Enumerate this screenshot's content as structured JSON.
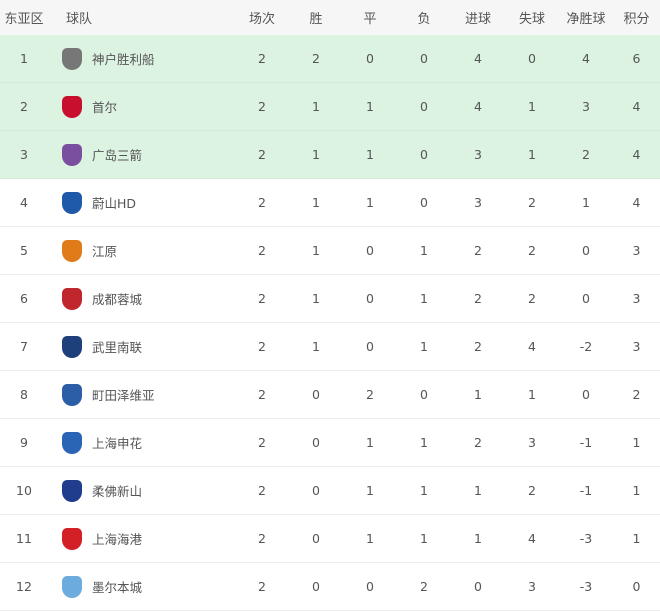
{
  "headers": [
    "东亚区",
    "球队",
    "场次",
    "胜",
    "平",
    "负",
    "进球",
    "失球",
    "净胜球",
    "积分"
  ],
  "qualify_color": "#ddf3e1",
  "rows": [
    {
      "rank": "1",
      "team": "神户胜利船",
      "logo": "vissel-kobe-crest-icon",
      "color": "#777",
      "p": "2",
      "w": "2",
      "d": "0",
      "l": "0",
      "gf": "4",
      "ga": "0",
      "gd": "4",
      "pts": "6",
      "q": true
    },
    {
      "rank": "2",
      "team": "首尔",
      "logo": "fc-seoul-crest-icon",
      "color": "#c8102e",
      "p": "2",
      "w": "1",
      "d": "1",
      "l": "0",
      "gf": "4",
      "ga": "1",
      "gd": "3",
      "pts": "4",
      "q": true
    },
    {
      "rank": "3",
      "team": "广岛三箭",
      "logo": "sanfrecce-hiroshima-crest-icon",
      "color": "#7a4fa0",
      "p": "2",
      "w": "1",
      "d": "1",
      "l": "0",
      "gf": "3",
      "ga": "1",
      "gd": "2",
      "pts": "4",
      "q": true
    },
    {
      "rank": "4",
      "team": "蔚山HD",
      "logo": "ulsan-hd-crest-icon",
      "color": "#1e5aa8",
      "p": "2",
      "w": "1",
      "d": "1",
      "l": "0",
      "gf": "3",
      "ga": "2",
      "gd": "1",
      "pts": "4",
      "q": false
    },
    {
      "rank": "5",
      "team": "江原",
      "logo": "gangwon-fc-crest-icon",
      "color": "#e07b1a",
      "p": "2",
      "w": "1",
      "d": "0",
      "l": "1",
      "gf": "2",
      "ga": "2",
      "gd": "0",
      "pts": "3",
      "q": false
    },
    {
      "rank": "6",
      "team": "成都蓉城",
      "logo": "chengdu-rongcheng-crest-icon",
      "color": "#c0272d",
      "p": "2",
      "w": "1",
      "d": "0",
      "l": "1",
      "gf": "2",
      "ga": "2",
      "gd": "0",
      "pts": "3",
      "q": false
    },
    {
      "rank": "7",
      "team": "武里南联",
      "logo": "buriram-united-crest-icon",
      "color": "#1d3f7a",
      "p": "2",
      "w": "1",
      "d": "0",
      "l": "1",
      "gf": "2",
      "ga": "4",
      "gd": "-2",
      "pts": "3",
      "q": false
    },
    {
      "rank": "8",
      "team": "町田泽维亚",
      "logo": "machida-zelvia-crest-icon",
      "color": "#2b5ea7",
      "p": "2",
      "w": "0",
      "d": "2",
      "l": "0",
      "gf": "1",
      "ga": "1",
      "gd": "0",
      "pts": "2",
      "q": false
    },
    {
      "rank": "9",
      "team": "上海申花",
      "logo": "shanghai-shenhua-crest-icon",
      "color": "#2a64b5",
      "p": "2",
      "w": "0",
      "d": "1",
      "l": "1",
      "gf": "2",
      "ga": "3",
      "gd": "-1",
      "pts": "1",
      "q": false
    },
    {
      "rank": "10",
      "team": "柔佛新山",
      "logo": "johor-darul-tazim-crest-icon",
      "color": "#1f3d8c",
      "p": "2",
      "w": "0",
      "d": "1",
      "l": "1",
      "gf": "1",
      "ga": "2",
      "gd": "-1",
      "pts": "1",
      "q": false
    },
    {
      "rank": "11",
      "team": "上海海港",
      "logo": "shanghai-port-crest-icon",
      "color": "#d32027",
      "p": "2",
      "w": "0",
      "d": "1",
      "l": "1",
      "gf": "1",
      "ga": "4",
      "gd": "-3",
      "pts": "1",
      "q": false
    },
    {
      "rank": "12",
      "team": "墨尔本城",
      "logo": "melbourne-city-crest-icon",
      "color": "#6cabdd",
      "p": "2",
      "w": "0",
      "d": "0",
      "l": "2",
      "gf": "0",
      "ga": "3",
      "gd": "-3",
      "pts": "0",
      "q": false
    }
  ]
}
